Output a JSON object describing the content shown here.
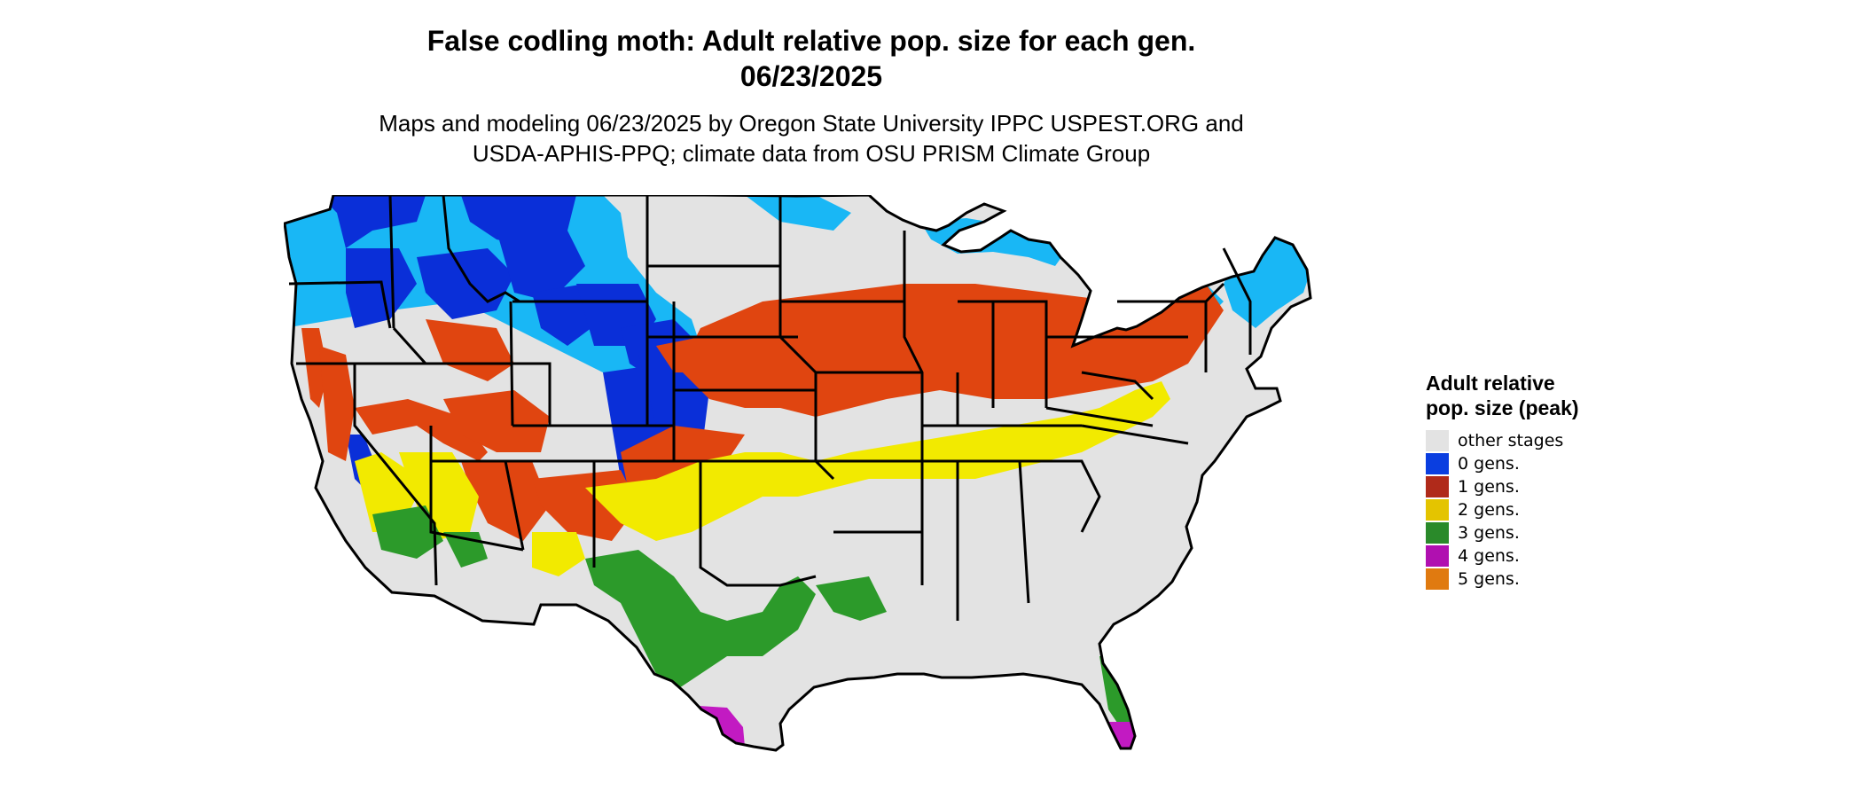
{
  "title": {
    "line1": "False codling moth: Adult relative pop. size for each gen.",
    "line2": "06/23/2025"
  },
  "subtitle": {
    "line1": "Maps and modeling 06/23/2025 by Oregon State University IPPC USPEST.ORG and",
    "line2": "USDA-APHIS-PPQ; climate data from OSU PRISM Climate Group"
  },
  "legend": {
    "title": "Adult relative pop. size (peak)",
    "items": [
      {
        "label": "other stages",
        "color": "#e3e3e3"
      },
      {
        "label": "0 gens.",
        "color": "#0a3ee0"
      },
      {
        "label": "1 gens.",
        "color": "#b02a1a"
      },
      {
        "label": "2 gens.",
        "color": "#e4c400"
      },
      {
        "label": "3 gens.",
        "color": "#2a8a2a"
      },
      {
        "label": "4 gens.",
        "color": "#b010b0"
      },
      {
        "label": "5 gens.",
        "color": "#e07a10"
      }
    ]
  },
  "map": {
    "region": "contiguous United States",
    "colors": {
      "other": "#e3e3e3",
      "gen0_dark": "#0a2fd8",
      "gen0_light": "#19b7f5",
      "gen1": "#e04510",
      "gen2": "#f2ea00",
      "gen3": "#2c9a2a",
      "gen4": "#c21ac2",
      "border": "#000000"
    }
  }
}
